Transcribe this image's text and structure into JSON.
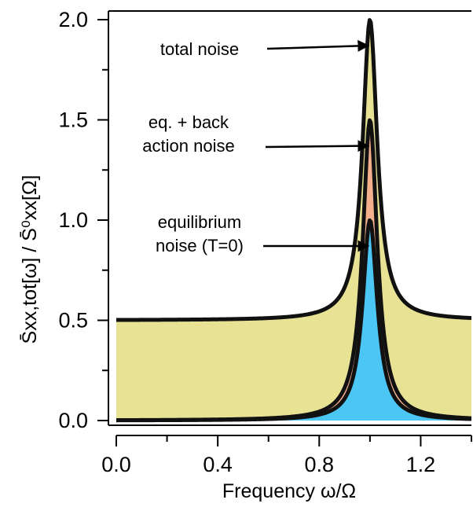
{
  "chart_data": {
    "type": "area",
    "xlabel": "Frequency ω/Ω",
    "ylabel": "S̄xx,tot[ω] / S̄⁰xx[Ω]",
    "xlim": [
      0.0,
      1.4
    ],
    "ylim": [
      0.0,
      2.0
    ],
    "x_ticks": [
      "0.0",
      "0.4",
      "0.8",
      "1.2"
    ],
    "y_ticks": [
      "0.0",
      "0.5",
      "1.0",
      "1.5",
      "2.0"
    ],
    "grid": false,
    "series": [
      {
        "name": "total noise",
        "x": [
          0.0,
          0.2,
          0.4,
          0.6,
          0.8,
          0.9,
          0.95,
          1.0,
          1.05,
          1.1,
          1.2,
          1.4
        ],
        "values": [
          0.5,
          0.51,
          0.52,
          0.53,
          0.58,
          0.69,
          0.92,
          2.0,
          0.92,
          0.69,
          0.58,
          0.52
        ],
        "color": "#e8e394"
      },
      {
        "name": "eq. + back action noise",
        "x": [
          0.0,
          0.2,
          0.4,
          0.6,
          0.8,
          0.9,
          0.95,
          1.0,
          1.05,
          1.1,
          1.2,
          1.4
        ],
        "values": [
          0.0,
          0.01,
          0.02,
          0.03,
          0.08,
          0.19,
          0.42,
          1.5,
          0.42,
          0.19,
          0.08,
          0.02
        ],
        "color": "#f4b08d"
      },
      {
        "name": "equilibrium noise (T=0)",
        "x": [
          0.0,
          0.2,
          0.4,
          0.6,
          0.8,
          0.9,
          0.95,
          1.0,
          1.05,
          1.1,
          1.2,
          1.4
        ],
        "values": [
          0.0,
          0.0,
          0.0,
          0.01,
          0.05,
          0.13,
          0.28,
          1.0,
          0.28,
          0.13,
          0.05,
          0.01
        ],
        "color": "#4cc6f5"
      }
    ],
    "annotations": [
      {
        "lines": [
          "total noise"
        ],
        "target": [
          1.0,
          2.0
        ]
      },
      {
        "lines": [
          "eq. + back",
          "action noise"
        ],
        "target": [
          1.0,
          1.5
        ]
      },
      {
        "lines": [
          "equilibrium",
          "noise (T=0)"
        ],
        "target": [
          1.0,
          1.0
        ]
      }
    ]
  }
}
